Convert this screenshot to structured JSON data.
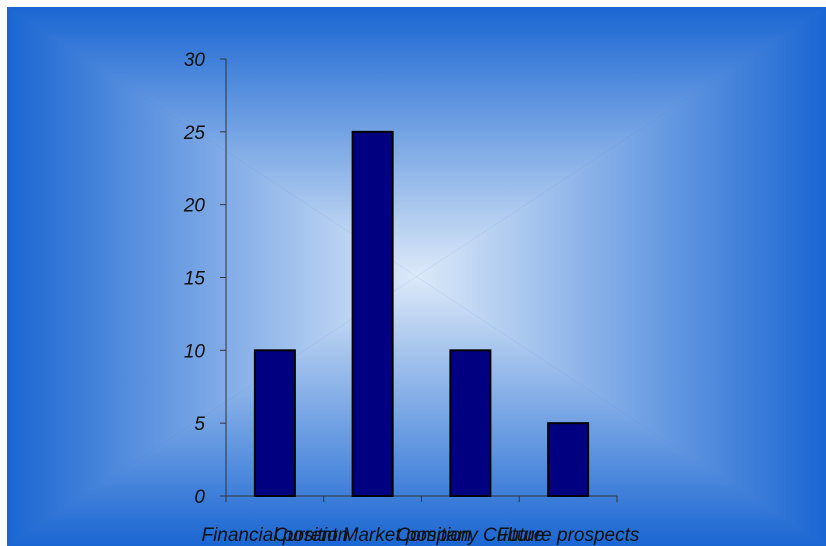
{
  "chart_data": {
    "type": "bar",
    "categories": [
      "Financial position",
      "Current Market position",
      "Company Culture",
      "Future prospects"
    ],
    "values": [
      10,
      25,
      10,
      5
    ],
    "yticks": [
      0,
      5,
      10,
      15,
      20,
      25,
      30
    ],
    "ylim": [
      0,
      30
    ],
    "grid": false,
    "legend": "none",
    "colors": {
      "bar_fill": "#000080",
      "bar_stroke": "#000000",
      "axis": "#333333",
      "background_edge": "#1a66d2",
      "background_center": "#dce9f8"
    }
  }
}
